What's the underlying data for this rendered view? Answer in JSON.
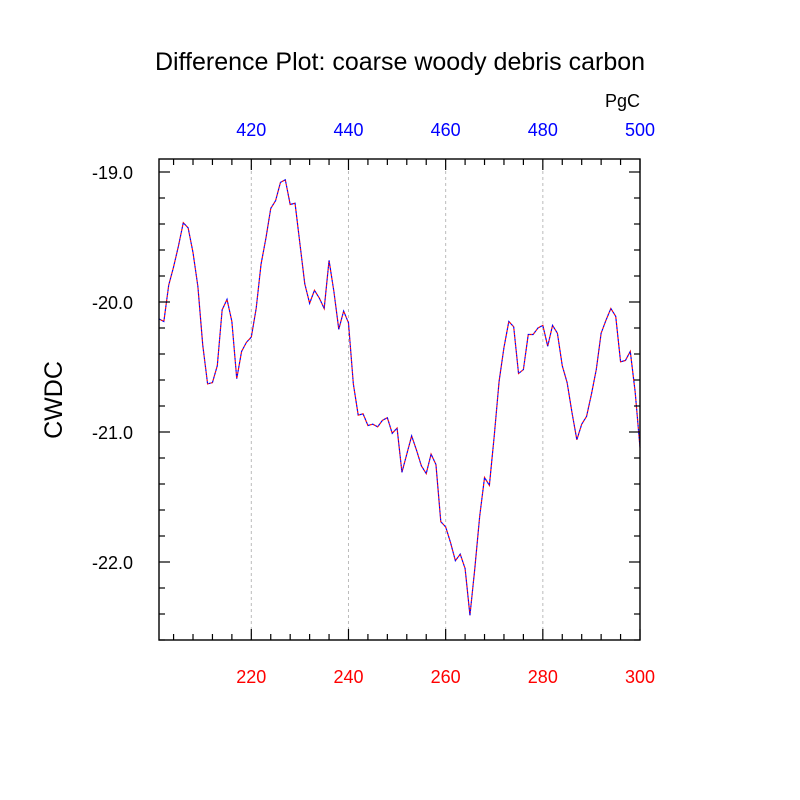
{
  "chart_data": {
    "type": "line",
    "title": "Difference Plot: coarse woody debris carbon",
    "units_label": "PgC",
    "ylabel": "CWDC",
    "xlabel": "",
    "xlim": [
      201,
      300
    ],
    "ylim": [
      -22.6,
      -18.9
    ],
    "x_top_offset": 200,
    "x_ticks_bottom": [
      220,
      240,
      260,
      280,
      300
    ],
    "x_ticks_bottom_labels": [
      "220",
      "240",
      "260",
      "280",
      "300"
    ],
    "x_ticks_top_labels": [
      "420",
      "440",
      "460",
      "480",
      "500"
    ],
    "y_ticks": [
      -19.0,
      -20.0,
      -21.0,
      -22.0
    ],
    "y_tick_labels": [
      "-19.0",
      "-20.0",
      "-21.0",
      "-22.0"
    ],
    "grid": "vertical dashed at major x ticks",
    "colors": {
      "bottom_axis_labels": "#ff0000",
      "top_axis_labels": "#0000ff",
      "series_a": "#0000ff",
      "series_b": "#ff0000",
      "grid": "#bbbbbb"
    },
    "series": [
      {
        "x": [
          201,
          202,
          203,
          204,
          205,
          206,
          207,
          208,
          209,
          210,
          211,
          212,
          213,
          214,
          215,
          216,
          217,
          218,
          219,
          220,
          221,
          222,
          223,
          224,
          225,
          226,
          227,
          228,
          229,
          230,
          231,
          232,
          233,
          234,
          235,
          236,
          237,
          238,
          239,
          240,
          241,
          242,
          243,
          244,
          245,
          246,
          247,
          248,
          249,
          250,
          251,
          252,
          253,
          254,
          255,
          256,
          257,
          258,
          259,
          260,
          261,
          262,
          263,
          264,
          265,
          266,
          267,
          268,
          269,
          270,
          271,
          272,
          273,
          274,
          275,
          276,
          277,
          278,
          279,
          280,
          281,
          282,
          283,
          284,
          285,
          286,
          287,
          288,
          289,
          290,
          291,
          292,
          293,
          294,
          295,
          296,
          297,
          298,
          299,
          300
        ],
        "values": [
          -20.13,
          -20.15,
          -19.87,
          -19.73,
          -19.57,
          -19.39,
          -19.43,
          -19.62,
          -19.88,
          -20.33,
          -20.63,
          -20.62,
          -20.49,
          -20.06,
          -19.98,
          -20.15,
          -20.59,
          -20.38,
          -20.31,
          -20.27,
          -20.05,
          -19.71,
          -19.51,
          -19.28,
          -19.22,
          -19.08,
          -19.06,
          -19.25,
          -19.24,
          -19.55,
          -19.86,
          -20.01,
          -19.91,
          -19.97,
          -20.05,
          -19.68,
          -19.92,
          -20.21,
          -20.07,
          -20.16,
          -20.63,
          -20.87,
          -20.86,
          -20.95,
          -20.94,
          -20.96,
          -20.91,
          -20.89,
          -21.01,
          -20.97,
          -21.31,
          -21.17,
          -21.03,
          -21.14,
          -21.26,
          -21.32,
          -21.17,
          -21.25,
          -21.69,
          -21.73,
          -21.85,
          -21.99,
          -21.94,
          -22.05,
          -22.41,
          -22.05,
          -21.65,
          -21.35,
          -21.41,
          -21.03,
          -20.61,
          -20.35,
          -20.15,
          -20.19,
          -20.55,
          -20.52,
          -20.25,
          -20.25,
          -20.2,
          -20.18,
          -20.34,
          -20.18,
          -20.24,
          -20.49,
          -20.62,
          -20.85,
          -21.06,
          -20.94,
          -20.88,
          -20.71,
          -20.52,
          -20.24,
          -20.14,
          -20.05,
          -20.11,
          -20.46,
          -20.45,
          -20.38,
          -20.69,
          -21.12
        ]
      }
    ]
  }
}
